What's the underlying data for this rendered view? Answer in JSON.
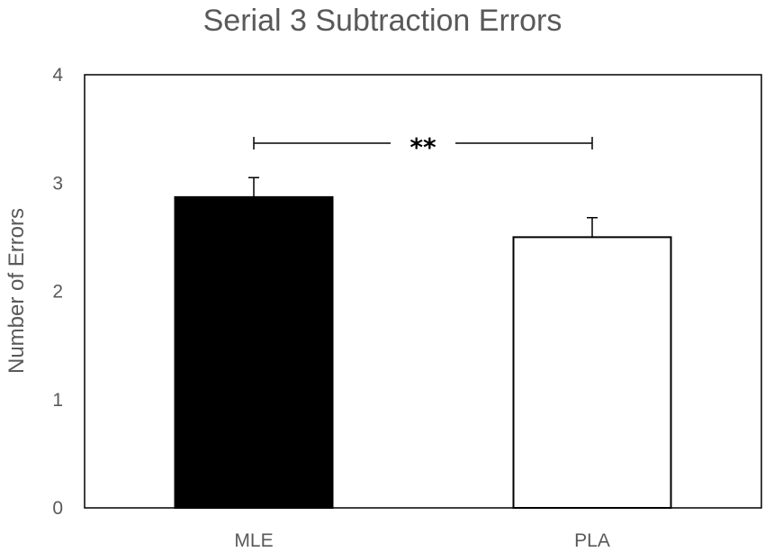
{
  "chart_data": {
    "type": "bar",
    "title": "Serial 3 Subtraction Errors",
    "xlabel": "",
    "ylabel": "Number of Errors",
    "categories": [
      "MLE",
      "PLA"
    ],
    "values": [
      2.87,
      2.5
    ],
    "error_bars": [
      0.18,
      0.18
    ],
    "ylim": [
      0,
      4
    ],
    "yticks": [
      0,
      1,
      2,
      3,
      4
    ],
    "grid": false,
    "legend": "none",
    "bar_fill": [
      "#000000",
      "#ffffff"
    ],
    "bar_stroke": "#000000",
    "significance": {
      "label": "**",
      "between": [
        "MLE",
        "PLA"
      ]
    }
  }
}
